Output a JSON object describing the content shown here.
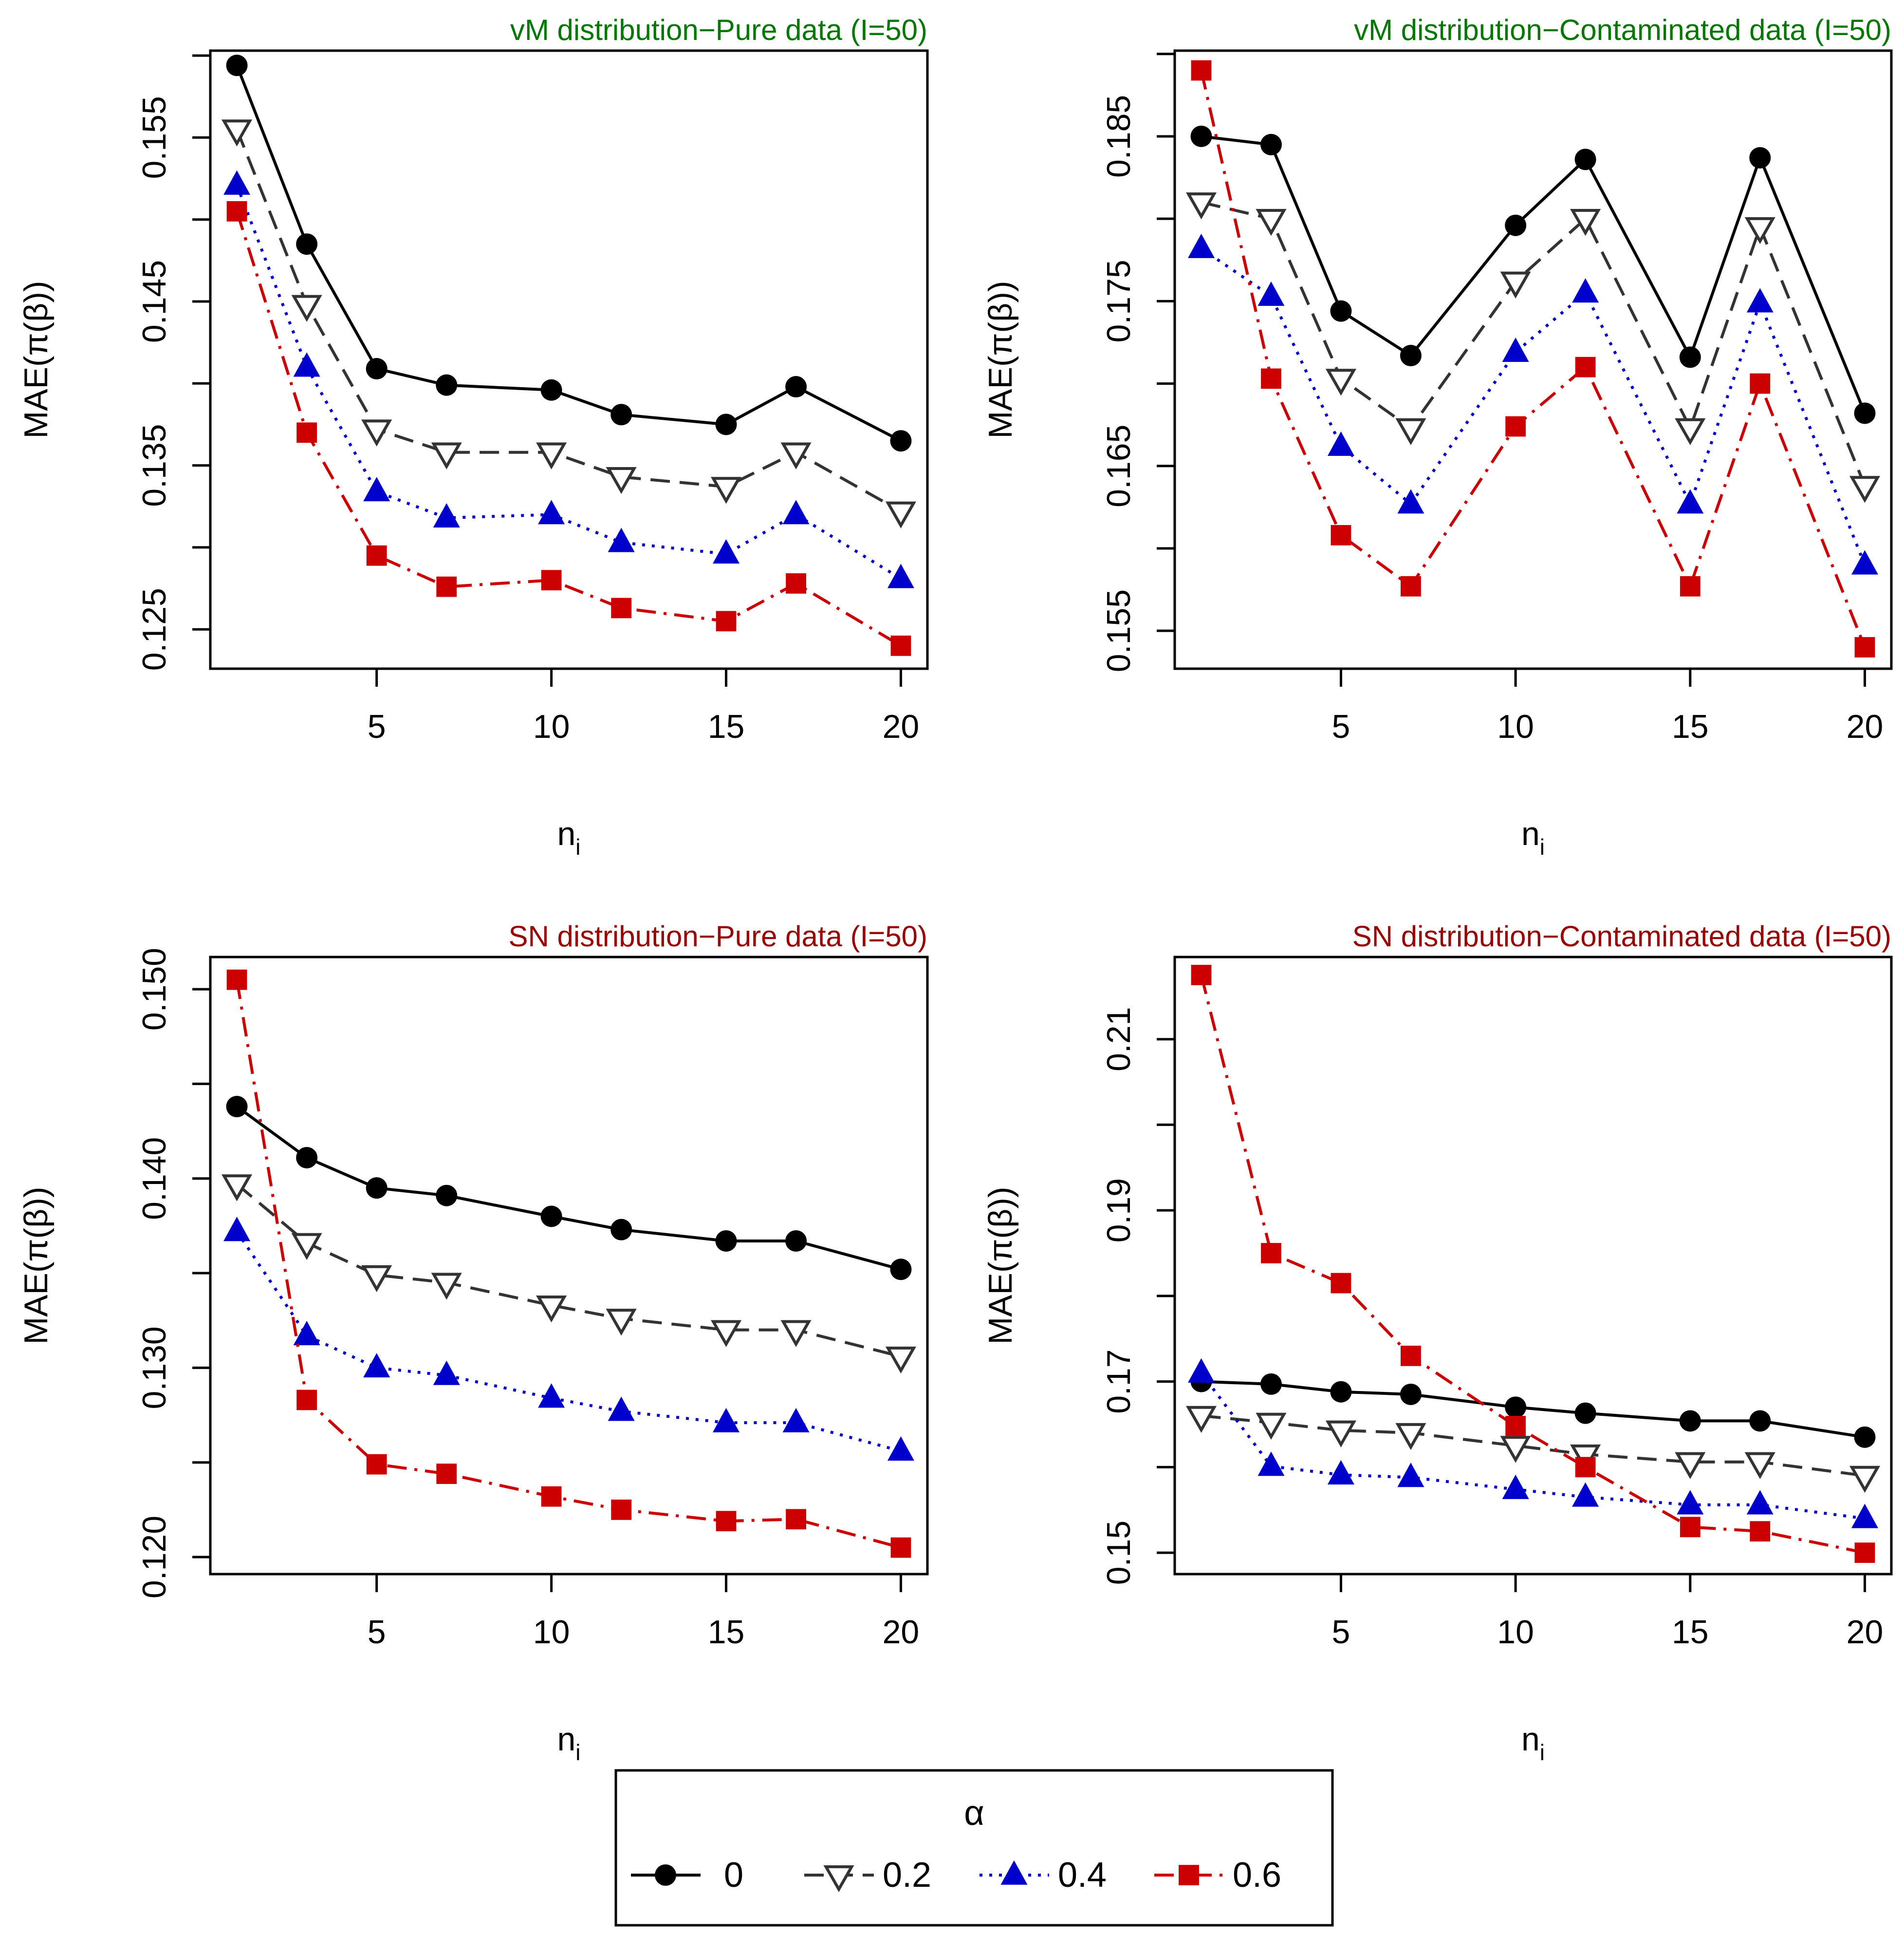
{
  "legend": {
    "title": "α",
    "entries": [
      {
        "label": "0",
        "color": "#000000",
        "linestyle": "solid",
        "marker": "filled-circle"
      },
      {
        "label": "0.2",
        "color": "#333333",
        "linestyle": "dashed",
        "marker": "open-down-triangle"
      },
      {
        "label": "0.4",
        "color": "#0000CD",
        "linestyle": "dotted",
        "marker": "filled-up-triangle"
      },
      {
        "label": "0.6",
        "color": "#CC0000",
        "linestyle": "dashdot",
        "marker": "filled-square"
      }
    ]
  },
  "chart_data": [
    {
      "type": "line",
      "title": "vM distribution−Pure data (I=50)",
      "title_color": "#007700",
      "xlabel": "n",
      "xlabel_sub": "i",
      "ylabel": "MAE(π(β))",
      "x": [
        1,
        3,
        5,
        7,
        10,
        12,
        15,
        17,
        20
      ],
      "xlim": [
        0.24,
        20.76
      ],
      "xticks": [
        5,
        10,
        15,
        20
      ],
      "xticklabels": [
        "5",
        "10",
        "15",
        "20"
      ],
      "ylim": [
        0.1226,
        0.1603
      ],
      "yticks": [
        0.125,
        0.13,
        0.135,
        0.14,
        0.145,
        0.15,
        0.155,
        0.16
      ],
      "yticklabels": [
        "0.125",
        "",
        "0.135",
        "",
        "0.145",
        "",
        "0.155",
        ""
      ],
      "series": [
        {
          "name": "0",
          "values": [
            0.1594,
            0.1485,
            0.1409,
            0.1399,
            0.1396,
            0.1381,
            0.1375,
            0.1398,
            0.1365
          ]
        },
        {
          "name": "0.2",
          "values": [
            0.1555,
            0.1448,
            0.1372,
            0.1358,
            0.1358,
            0.1343,
            0.1337,
            0.1358,
            0.1322
          ]
        },
        {
          "name": "0.4",
          "values": [
            0.1521,
            0.141,
            0.1334,
            0.1318,
            0.132,
            0.1303,
            0.1296,
            0.132,
            0.1281
          ]
        },
        {
          "name": "0.6",
          "values": [
            0.1505,
            0.137,
            0.1295,
            0.1276,
            0.128,
            0.1263,
            0.1255,
            0.1278,
            0.124
          ]
        }
      ]
    },
    {
      "type": "line",
      "title": "vM distribution−Contaminated data (I=50)",
      "title_color": "#007700",
      "xlabel": "n",
      "xlabel_sub": "i",
      "ylabel": "MAE(π(β))",
      "x": [
        1,
        3,
        5,
        7,
        10,
        12,
        15,
        17,
        20
      ],
      "xlim": [
        0.24,
        20.76
      ],
      "xticks": [
        5,
        10,
        15,
        20
      ],
      "xticklabels": [
        "5",
        "10",
        "15",
        "20"
      ],
      "ylim": [
        0.1527,
        0.1902
      ],
      "yticks": [
        0.155,
        0.16,
        0.165,
        0.17,
        0.175,
        0.18,
        0.185,
        0.19
      ],
      "yticklabels": [
        "0.155",
        "",
        "0.165",
        "",
        "0.175",
        "",
        "0.185",
        ""
      ],
      "series": [
        {
          "name": "0",
          "values": [
            0.185,
            0.1845,
            0.1744,
            0.1717,
            0.1796,
            0.1836,
            0.1716,
            0.1837,
            0.1682
          ]
        },
        {
          "name": "0.2",
          "values": [
            0.181,
            0.18,
            0.1703,
            0.1673,
            0.1762,
            0.18,
            0.1673,
            0.1795,
            0.1638
          ]
        },
        {
          "name": "0.4",
          "values": [
            0.1782,
            0.1753,
            0.1662,
            0.1627,
            0.1719,
            0.1755,
            0.1627,
            0.1749,
            0.159
          ]
        },
        {
          "name": "0.6",
          "values": [
            0.189,
            0.1703,
            0.1608,
            0.1577,
            0.1674,
            0.171,
            0.1577,
            0.17,
            0.154
          ]
        }
      ]
    },
    {
      "type": "line",
      "title": "SN distribution−Pure data (I=50)",
      "title_color": "#990000",
      "xlabel": "n",
      "xlabel_sub": "i",
      "ylabel": "MAE(π(β))",
      "x": [
        1,
        3,
        5,
        7,
        10,
        12,
        15,
        17,
        20
      ],
      "xlim": [
        0.24,
        20.76
      ],
      "xticks": [
        5,
        10,
        15,
        20
      ],
      "xticklabels": [
        "5",
        "10",
        "15",
        "20"
      ],
      "ylim": [
        0.1191,
        0.1517
      ],
      "yticks": [
        0.12,
        0.125,
        0.13,
        0.135,
        0.14,
        0.145,
        0.15
      ],
      "yticklabels": [
        "0.120",
        "",
        "0.130",
        "",
        "0.140",
        "",
        "0.150"
      ],
      "series": [
        {
          "name": "0",
          "values": [
            0.1438,
            0.1411,
            0.1395,
            0.1391,
            0.138,
            0.1373,
            0.1367,
            0.1367,
            0.1352
          ]
        },
        {
          "name": "0.2",
          "values": [
            0.1397,
            0.1366,
            0.1349,
            0.1345,
            0.1333,
            0.1326,
            0.132,
            0.132,
            0.1306
          ]
        },
        {
          "name": "0.4",
          "values": [
            0.1372,
            0.1317,
            0.13,
            0.1296,
            0.1284,
            0.1277,
            0.1271,
            0.1271,
            0.1256
          ]
        },
        {
          "name": "0.6",
          "values": [
            0.1505,
            0.1283,
            0.1249,
            0.1244,
            0.1232,
            0.1225,
            0.1219,
            0.122,
            0.1205
          ]
        }
      ]
    },
    {
      "type": "line",
      "title": "SN distribution−Contaminated data (I=50)",
      "title_color": "#990000",
      "xlabel": "n",
      "xlabel_sub": "i",
      "ylabel": "MAE(π(β))",
      "x": [
        1,
        3,
        5,
        7,
        10,
        12,
        15,
        17,
        20
      ],
      "xlim": [
        0.24,
        20.76
      ],
      "xticks": [
        5,
        10,
        15,
        20
      ],
      "xticklabels": [
        "5",
        "10",
        "15",
        "20"
      ],
      "ylim": [
        0.1475,
        0.2196
      ],
      "yticks": [
        0.15,
        0.16,
        0.17,
        0.18,
        0.19,
        0.2,
        0.21
      ],
      "yticklabels": [
        "0.15",
        "",
        "0.17",
        "",
        "0.19",
        "",
        "0.21"
      ],
      "series": [
        {
          "name": "0",
          "values": [
            0.17,
            0.1697,
            0.1688,
            0.1685,
            0.167,
            0.1663,
            0.1654,
            0.1654,
            0.1635
          ]
        },
        {
          "name": "0.2",
          "values": [
            0.166,
            0.1652,
            0.1643,
            0.164,
            0.1625,
            0.1615,
            0.1606,
            0.1606,
            0.159
          ]
        },
        {
          "name": "0.4",
          "values": [
            0.171,
            0.1601,
            0.1591,
            0.1588,
            0.1574,
            0.1565,
            0.1556,
            0.1556,
            0.154
          ]
        },
        {
          "name": "0.6",
          "values": [
            0.2175,
            0.185,
            0.1815,
            0.173,
            0.1648,
            0.16,
            0.153,
            0.1525,
            0.15
          ]
        }
      ]
    }
  ]
}
